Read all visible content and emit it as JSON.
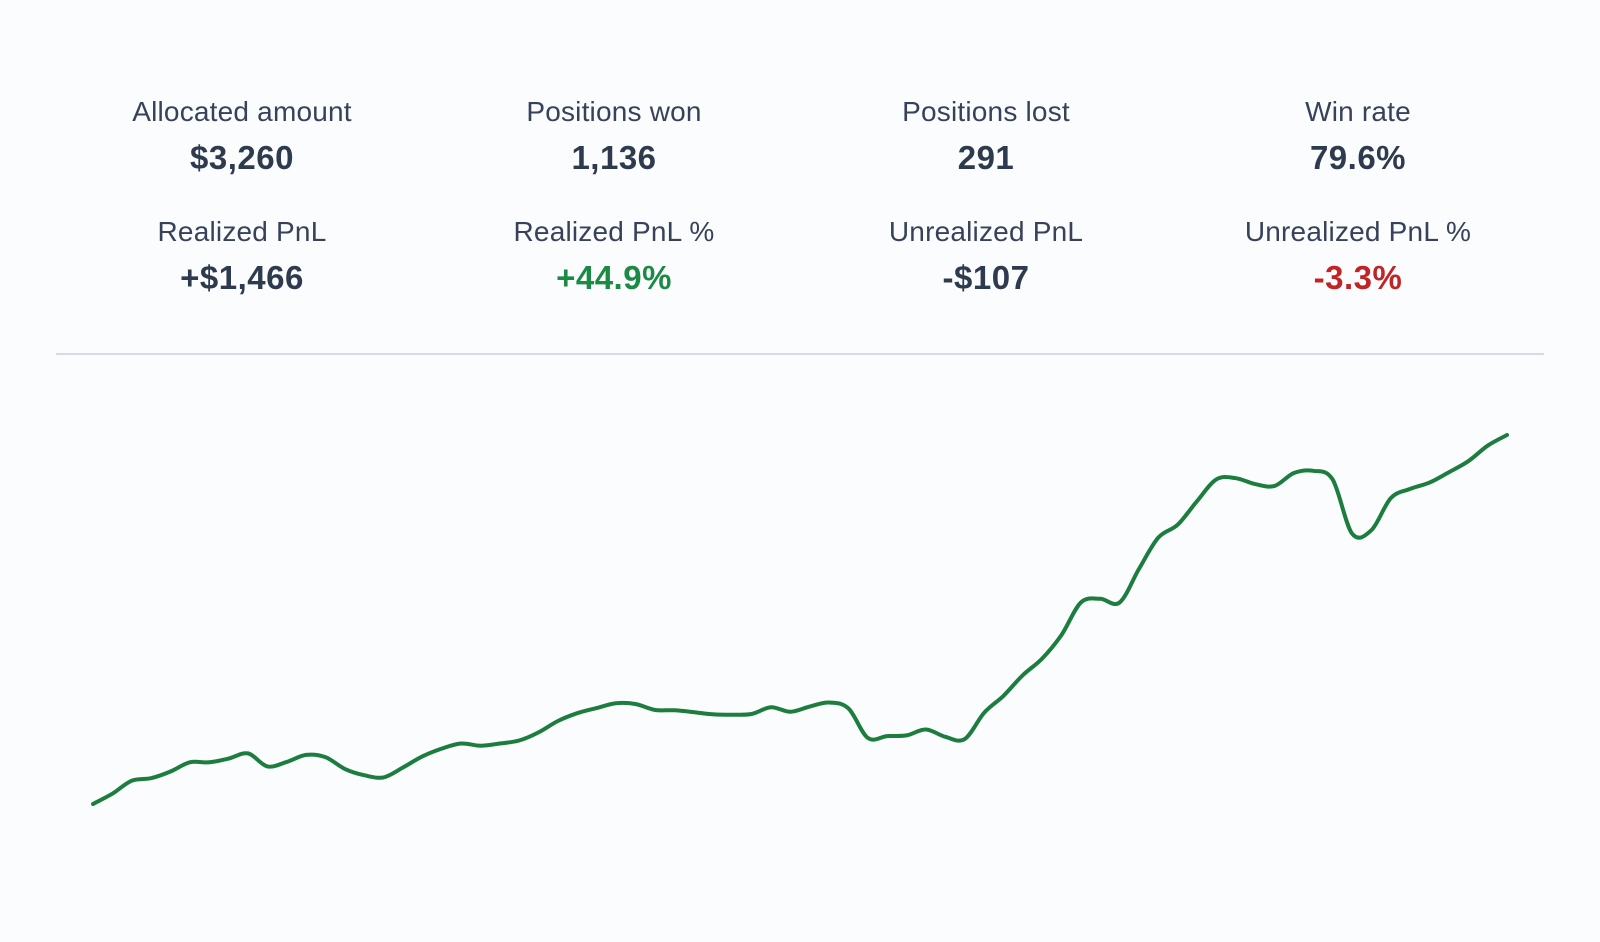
{
  "stats": [
    {
      "label": "Allocated amount",
      "value": "$3,260",
      "tone": "neutral"
    },
    {
      "label": "Positions won",
      "value": "1,136",
      "tone": "neutral"
    },
    {
      "label": "Positions lost",
      "value": "291",
      "tone": "neutral"
    },
    {
      "label": "Win rate",
      "value": "79.6%",
      "tone": "neutral"
    },
    {
      "label": "Realized PnL",
      "value": "+$1,466",
      "tone": "neutral"
    },
    {
      "label": "Realized PnL %",
      "value": "+44.9%",
      "tone": "positive"
    },
    {
      "label": "Unrealized PnL",
      "value": "-$107",
      "tone": "neutral"
    },
    {
      "label": "Unrealized PnL %",
      "value": "-3.3%",
      "tone": "negative"
    }
  ],
  "colors": {
    "line": "#1c7d3f",
    "positive": "#1c8a45",
    "negative": "#c02424",
    "divider": "#d4dde7"
  },
  "chart_data": {
    "type": "line",
    "series": [
      {
        "values": [
          0.0,
          2.8,
          6.3,
          7.0,
          8.8,
          11.3,
          11.3,
          12.3,
          13.7,
          10.2,
          11.4,
          13.3,
          12.7,
          9.5,
          7.8,
          7.2,
          9.9,
          12.9,
          15.0,
          16.4,
          15.8,
          16.4,
          17.2,
          19.4,
          22.5,
          24.6,
          26.0,
          27.3,
          27.1,
          25.5,
          25.4,
          24.9,
          24.3,
          24.2,
          24.4,
          26.2,
          25.0,
          26.4,
          27.5,
          25.9,
          17.9,
          18.4,
          18.6,
          20.2,
          18.2,
          17.6,
          24.7,
          29.3,
          34.9,
          39.4,
          45.8,
          54.6,
          55.6,
          54.6,
          63.7,
          72.2,
          75.7,
          82.1,
          88.0,
          88.3,
          86.7,
          86.2,
          89.7,
          90.3,
          87.9,
          73.3,
          74.2,
          82.9,
          85.4,
          87.1,
          89.9,
          92.9,
          97.1,
          100.0
        ]
      }
    ]
  }
}
